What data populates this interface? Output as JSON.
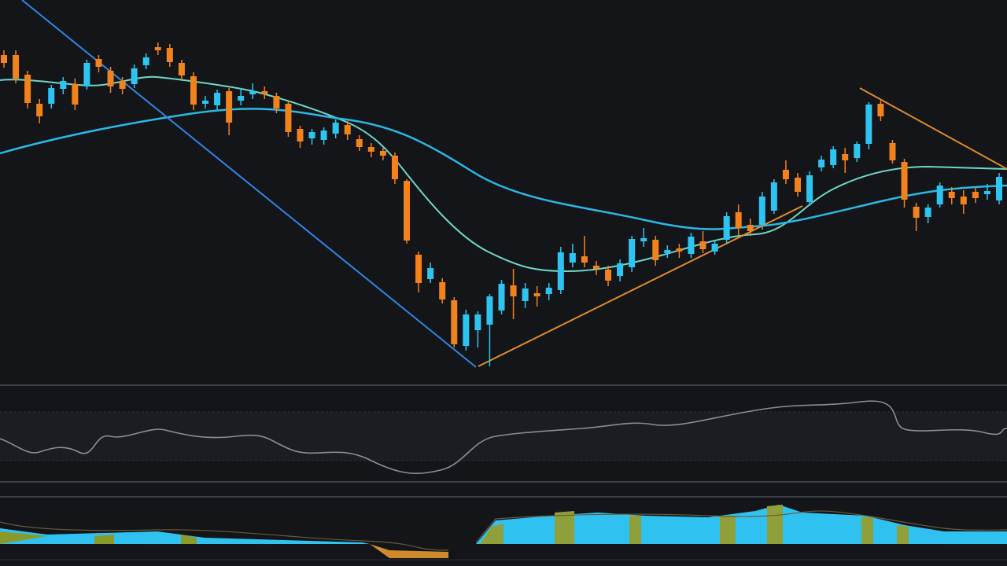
{
  "chart_data": {
    "type": "candlestick",
    "categories": [
      null,
      null,
      null,
      null,
      null,
      null,
      null,
      null,
      null,
      null,
      null,
      null,
      null,
      null,
      null,
      null,
      null,
      null,
      null,
      null,
      null,
      null,
      null,
      null,
      null,
      null,
      null,
      null,
      null,
      null,
      null,
      null,
      null,
      null,
      null,
      null,
      null,
      null,
      null,
      null,
      null,
      null,
      null,
      null,
      null,
      null,
      null,
      null,
      null,
      null,
      null,
      null,
      null,
      null,
      null,
      null,
      null,
      null,
      null,
      null,
      null,
      null,
      null,
      null,
      null,
      null,
      null,
      null,
      null,
      null,
      null,
      null,
      null,
      null,
      null,
      null,
      null,
      null,
      null,
      null,
      null,
      null,
      null,
      null,
      null
    ],
    "open": [
      420,
      420,
      395,
      358,
      358,
      377,
      383,
      380,
      415,
      400,
      387,
      383,
      407,
      430,
      429,
      410,
      393,
      358,
      356,
      374,
      362,
      370,
      374,
      368,
      358,
      326,
      314,
      312,
      320,
      331,
      313,
      303,
      298,
      292,
      260,
      166,
      135,
      131,
      108,
      50,
      70,
      77,
      95,
      127,
      107,
      117,
      116,
      121,
      156,
      164,
      152,
      147,
      139,
      150,
      183,
      185,
      168,
      174,
      167,
      183,
      170,
      185,
      220,
      204,
      204,
      222,
      274,
      264,
      233,
      277,
      280,
      294,
      289,
      307,
      358,
      308,
      284,
      227,
      214,
      230,
      246,
      240,
      246,
      243,
      235
    ],
    "high": [
      426,
      426,
      400,
      364,
      382,
      392,
      390,
      414,
      420,
      405,
      392,
      408,
      422,
      436,
      434,
      414,
      398,
      368,
      376,
      378,
      378,
      384,
      380,
      372,
      362,
      330,
      326,
      328,
      338,
      336,
      318,
      308,
      302,
      296,
      262,
      170,
      156,
      136,
      112,
      96,
      94,
      116,
      134,
      148,
      130,
      126,
      130,
      176,
      180,
      190,
      158,
      152,
      160,
      190,
      200,
      190,
      178,
      180,
      194,
      196,
      184,
      220,
      230,
      212,
      246,
      262,
      286,
      270,
      272,
      292,
      304,
      302,
      310,
      360,
      362,
      312,
      288,
      232,
      230,
      258,
      252,
      248,
      252,
      256,
      270
    ],
    "low": [
      404,
      384,
      352,
      333,
      352,
      370,
      350,
      376,
      398,
      372,
      370,
      378,
      402,
      420,
      405,
      388,
      350,
      352,
      350,
      318,
      356,
      364,
      364,
      346,
      316,
      302,
      306,
      306,
      314,
      312,
      298,
      290,
      286,
      256,
      180,
      118,
      130,
      104,
      48,
      44,
      48,
      24,
      90,
      84,
      98,
      100,
      108,
      116,
      150,
      150,
      140,
      126,
      132,
      144,
      176,
      152,
      162,
      162,
      162,
      168,
      166,
      180,
      190,
      190,
      198,
      218,
      256,
      240,
      228,
      272,
      276,
      270,
      284,
      300,
      336,
      282,
      226,
      196,
      206,
      226,
      230,
      218,
      232,
      236,
      230
    ],
    "close": [
      410,
      390,
      359,
      342,
      378,
      387,
      357,
      410,
      405,
      380,
      377,
      403,
      417,
      426,
      411,
      394,
      357,
      362,
      372,
      334,
      368,
      374,
      370,
      352,
      322,
      310,
      322,
      324,
      334,
      319,
      303,
      297,
      292,
      262,
      184,
      130,
      149,
      109,
      52,
      90,
      90,
      113,
      129,
      113,
      123,
      113,
      124,
      169,
      168,
      156,
      148,
      133,
      155,
      186,
      187,
      159,
      172,
      170,
      189,
      173,
      180,
      215,
      200,
      196,
      240,
      258,
      262,
      246,
      267,
      287,
      300,
      286,
      307,
      357,
      342,
      286,
      236,
      213,
      226,
      254,
      238,
      230,
      238,
      247,
      265
    ],
    "up_color": "#2ec4f2",
    "down_color": "#f2821c",
    "ylim": [
      0,
      490
    ]
  }
}
